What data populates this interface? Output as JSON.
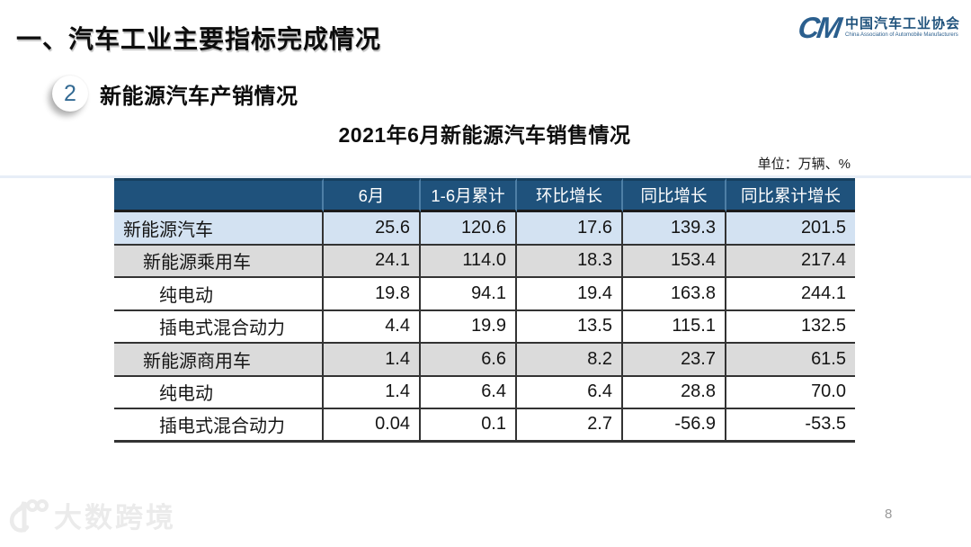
{
  "slide": {
    "main_title": "一、汽车工业主要指标完成情况",
    "section_badge": "2",
    "section_title": "新能源汽车产销情况",
    "page_number": "8"
  },
  "logo": {
    "monogram": "CM",
    "name_cn": "中国汽车工业协会",
    "name_en": "China Association of Automobile Manufacturers"
  },
  "watermark": {
    "text": "大数跨境"
  },
  "chart_data": {
    "type": "table",
    "title": "2021年6月新能源汽车销售情况",
    "unit": "单位：万辆、%",
    "columns": [
      "",
      "6月",
      "1-6月累计",
      "环比增长",
      "同比增长",
      "同比累计增长"
    ],
    "rows": [
      {
        "label": "新能源汽车",
        "indent": 0,
        "style": "blue",
        "values": [
          "25.6",
          "120.6",
          "17.6",
          "139.3",
          "201.5"
        ]
      },
      {
        "label": "新能源乘用车",
        "indent": 1,
        "style": "grey",
        "values": [
          "24.1",
          "114.0",
          "18.3",
          "153.4",
          "217.4"
        ]
      },
      {
        "label": "纯电动",
        "indent": 2,
        "style": "white",
        "values": [
          "19.8",
          "94.1",
          "19.4",
          "163.8",
          "244.1"
        ]
      },
      {
        "label": "插电式混合动力",
        "indent": 2,
        "style": "white",
        "values": [
          "4.4",
          "19.9",
          "13.5",
          "115.1",
          "132.5"
        ]
      },
      {
        "label": "新能源商用车",
        "indent": 1,
        "style": "grey",
        "values": [
          "1.4",
          "6.6",
          "8.2",
          "23.7",
          "61.5"
        ]
      },
      {
        "label": "纯电动",
        "indent": 2,
        "style": "white",
        "values": [
          "1.4",
          "6.4",
          "6.4",
          "28.8",
          "70.0"
        ]
      },
      {
        "label": "插电式混合动力",
        "indent": 2,
        "style": "white",
        "values": [
          "0.04",
          "0.1",
          "2.7",
          "-56.9",
          "-53.5"
        ]
      }
    ]
  },
  "colors": {
    "header_bg": "#1F527C",
    "row_highlight_blue": "#D3E2F2",
    "row_highlight_grey": "#DBDBDB",
    "border_dark": "#333333",
    "logo_blue": "#2B5F8E",
    "badge_number": "#336A93",
    "top_strip": "#E7EEF7",
    "page_number_grey": "#9A9A9A"
  }
}
